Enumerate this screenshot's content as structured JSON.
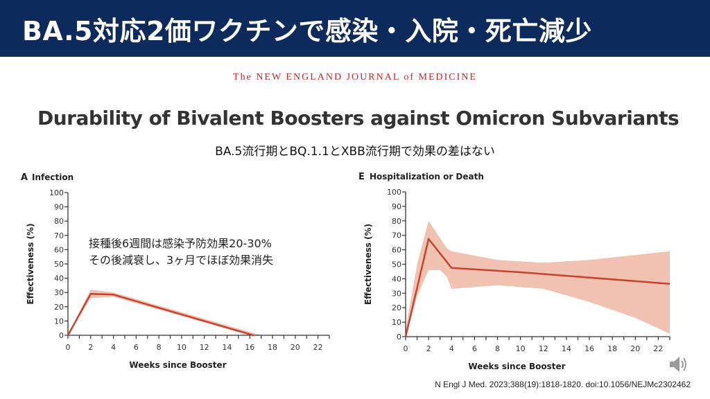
{
  "header": {
    "title": "BA.5対応2価ワクチンで感染・入院・死亡減少"
  },
  "journal": "The NEW ENGLAND JOURNAL of MEDICINE",
  "page_title": "Durability of Bivalent Boosters against Omicron Subvariants",
  "subtitle": "BA.5流行期とBQ.1.1とXBB流行期で効果の差はない",
  "annotation": {
    "line1": "接種後6週間は感染予防効果20-30%",
    "line2": "その後減衰し、3ヶ月でほぼ効果消失"
  },
  "citation": "N Engl J Med. 2023;388(19):1818-1820. doi:10.1056/NEJMc2302462",
  "colors": {
    "header_bg": "#0c2a5b",
    "line": "#c8432c",
    "band": "#eeb7a5"
  },
  "chart_data": [
    {
      "type": "line",
      "panel": "A",
      "title": "Infection",
      "xlabel": "Weeks since Booster",
      "ylabel": "Effectiveness (%)",
      "xlim": [
        0,
        23
      ],
      "ylim": [
        0,
        100
      ],
      "xticks": [
        0,
        2,
        4,
        6,
        8,
        10,
        12,
        14,
        16,
        18,
        20,
        22
      ],
      "yticks": [
        0,
        10,
        20,
        30,
        40,
        50,
        60,
        70,
        80,
        90,
        100
      ],
      "grid": false,
      "series": [
        {
          "name": "Effectiveness",
          "x": [
            0,
            2,
            4,
            16.3
          ],
          "y": [
            0,
            29,
            28.5,
            0
          ]
        }
      ],
      "ci_upper": {
        "x": [
          0,
          2,
          4,
          17
        ],
        "y": [
          0,
          32,
          30,
          0
        ]
      },
      "ci_lower": {
        "x": [
          0,
          2,
          4,
          16
        ],
        "y": [
          0,
          26,
          27,
          0
        ]
      }
    },
    {
      "type": "line",
      "panel": "E",
      "title": "Hospitalization or Death",
      "xlabel": "Weeks since Booster",
      "ylabel": "Effectiveness (%)",
      "xlim": [
        0,
        23
      ],
      "ylim": [
        0,
        100
      ],
      "xticks": [
        0,
        2,
        4,
        6,
        8,
        10,
        12,
        14,
        16,
        18,
        20,
        22
      ],
      "yticks": [
        0,
        10,
        20,
        30,
        40,
        50,
        60,
        70,
        80,
        90,
        100
      ],
      "grid": false,
      "series": [
        {
          "name": "Effectiveness",
          "x": [
            0,
            2,
            4,
            10,
            23
          ],
          "y": [
            0,
            67.5,
            47.5,
            44.5,
            36.5
          ]
        }
      ],
      "ci_upper": {
        "x": [
          0,
          1,
          2,
          3,
          3.6,
          4,
          8,
          12,
          16,
          23
        ],
        "y": [
          5,
          50,
          80,
          68,
          61,
          59,
          53,
          51,
          53,
          59
        ]
      },
      "ci_lower": {
        "x": [
          0,
          1,
          2,
          3,
          3.6,
          4,
          8,
          12,
          16,
          20,
          23
        ],
        "y": [
          0,
          28,
          46,
          46,
          41,
          33,
          35.5,
          33,
          24,
          13,
          2
        ]
      }
    }
  ]
}
